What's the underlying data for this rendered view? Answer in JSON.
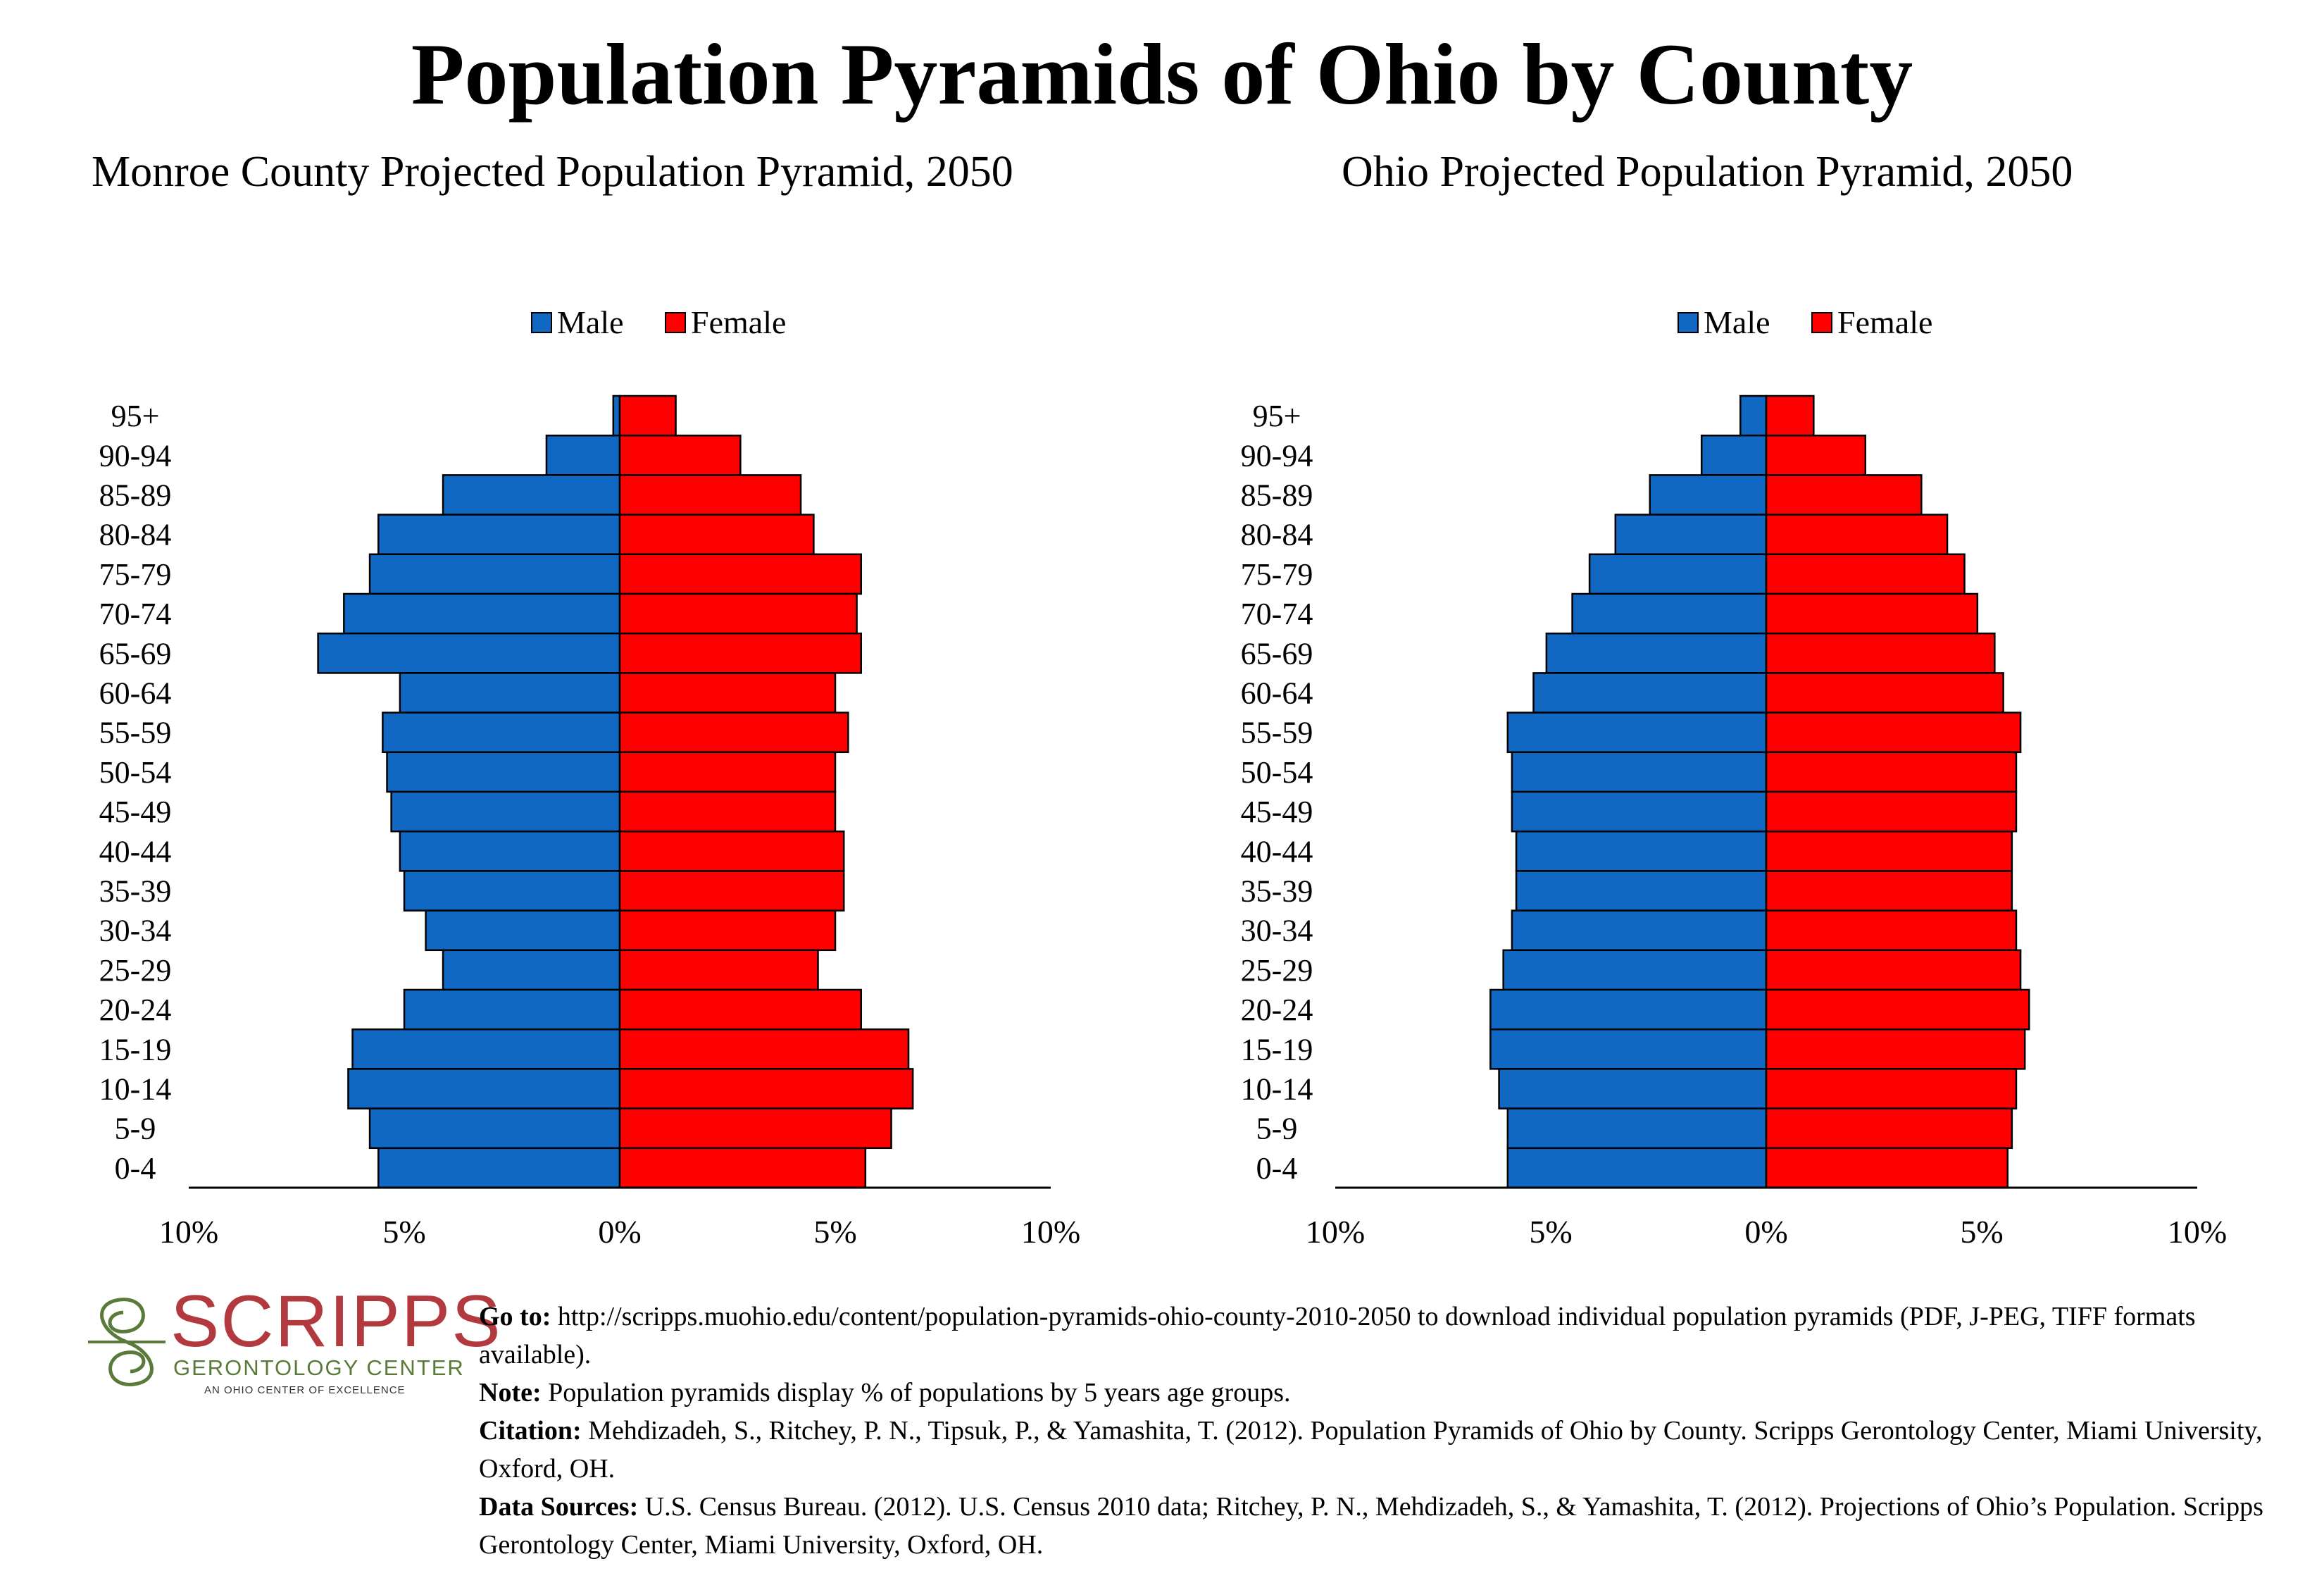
{
  "title": "Population Pyramids of Ohio by County",
  "colors": {
    "male": "#1068c2",
    "female": "#ff0000",
    "outline": "#000000"
  },
  "chart_data": [
    {
      "type": "bar",
      "title": "Monroe County Projected Population Pyramid, 2050",
      "orientation": "horizontal-pyramid",
      "legend": {
        "position": "top",
        "labels": [
          "Male",
          "Female"
        ]
      },
      "categories": [
        "95+",
        "90-94",
        "85-89",
        "80-84",
        "75-79",
        "70-74",
        "65-69",
        "60-64",
        "55-59",
        "50-54",
        "45-49",
        "40-44",
        "35-39",
        "30-34",
        "25-29",
        "20-24",
        "15-19",
        "10-14",
        "5-9",
        "0-4"
      ],
      "series": [
        {
          "name": "Male",
          "values": [
            0.15,
            1.7,
            4.1,
            5.6,
            5.8,
            6.4,
            7.0,
            5.1,
            5.5,
            5.4,
            5.3,
            5.1,
            5.0,
            4.5,
            4.1,
            5.0,
            6.2,
            6.3,
            5.8,
            5.6
          ]
        },
        {
          "name": "Female",
          "values": [
            1.3,
            2.8,
            4.2,
            4.5,
            5.6,
            5.5,
            5.6,
            5.0,
            5.3,
            5.0,
            5.0,
            5.2,
            5.2,
            5.0,
            4.6,
            5.6,
            6.7,
            6.8,
            6.3,
            5.7
          ]
        }
      ],
      "xlim": [
        -10,
        10
      ],
      "xticks": [
        "10%",
        "5%",
        "0%",
        "5%",
        "10%"
      ]
    },
    {
      "type": "bar",
      "title": "Ohio Projected Population Pyramid, 2050",
      "orientation": "horizontal-pyramid",
      "legend": {
        "position": "top",
        "labels": [
          "Male",
          "Female"
        ]
      },
      "categories": [
        "95+",
        "90-94",
        "85-89",
        "80-84",
        "75-79",
        "70-74",
        "65-69",
        "60-64",
        "55-59",
        "50-54",
        "45-49",
        "40-44",
        "35-39",
        "30-34",
        "25-29",
        "20-24",
        "15-19",
        "10-14",
        "5-9",
        "0-4"
      ],
      "series": [
        {
          "name": "Male",
          "values": [
            0.6,
            1.5,
            2.7,
            3.5,
            4.1,
            4.5,
            5.1,
            5.4,
            6.0,
            5.9,
            5.9,
            5.8,
            5.8,
            5.9,
            6.1,
            6.4,
            6.4,
            6.2,
            6.0,
            6.0
          ]
        },
        {
          "name": "Female",
          "values": [
            1.1,
            2.3,
            3.6,
            4.2,
            4.6,
            4.9,
            5.3,
            5.5,
            5.9,
            5.8,
            5.8,
            5.7,
            5.7,
            5.8,
            5.9,
            6.1,
            6.0,
            5.8,
            5.7,
            5.6
          ]
        }
      ],
      "xlim": [
        -10,
        10
      ],
      "xticks": [
        "10%",
        "5%",
        "0%",
        "5%",
        "10%"
      ]
    }
  ],
  "logo": {
    "name": "SCRIPPS",
    "subtitle": "GERONTOLOGY CENTER",
    "tagline": "AN OHIO CENTER OF EXCELLENCE"
  },
  "footer": {
    "goto_label": "Go to:",
    "goto_text": " http://scripps.muohio.edu/content/population-pyramids-ohio-county-2010-2050 to download individual population pyramids (PDF, J-PEG, TIFF formats available).",
    "note_label": "Note:",
    "note_text": " Population pyramids display % of populations by 5 years age groups.",
    "citation_label": "Citation:",
    "citation_text": " Mehdizadeh, S., Ritchey, P. N., Tipsuk, P., & Yamashita, T. (2012). Population Pyramids of Ohio by County. Scripps Gerontology Center, Miami University, Oxford, OH.",
    "sources_label": "Data Sources:",
    "sources_text": " U.S. Census Bureau. (2012). U.S. Census 2010 data; Ritchey, P. N., Mehdizadeh, S., & Yamashita, T. (2012). Projections of Ohio’s Population. Scripps Gerontology Center, Miami University, Oxford, OH."
  }
}
